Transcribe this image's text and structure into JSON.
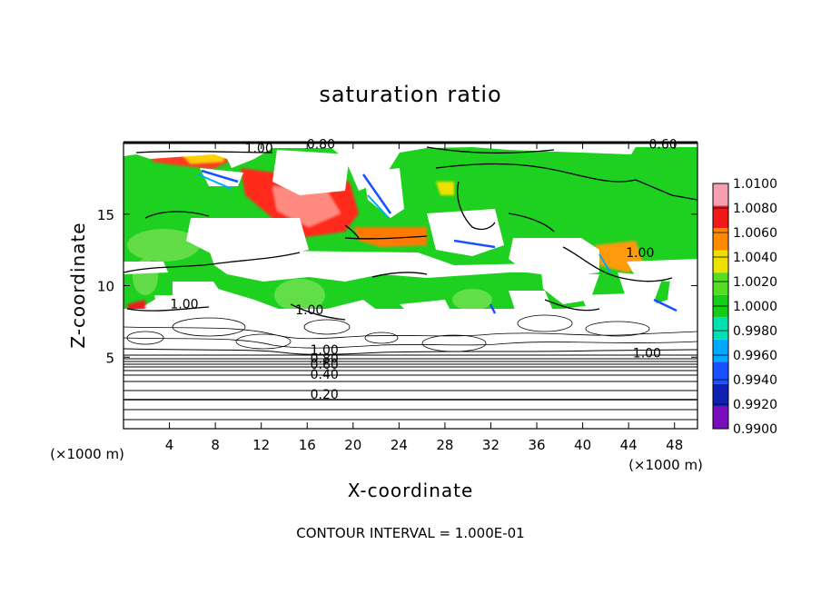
{
  "chart_data": {
    "type": "heatmap",
    "title": "saturation ratio",
    "xlabel": "X-coordinate",
    "ylabel": "Z-coordinate",
    "x_unit": "(×1000 m)",
    "z_unit": "(×1000 m)",
    "footer": "CONTOUR INTERVAL = 1.000E-01",
    "xlim": [
      0,
      50
    ],
    "ylim": [
      0,
      20
    ],
    "x_ticks": [
      4,
      8,
      12,
      16,
      20,
      24,
      28,
      32,
      36,
      40,
      44,
      48
    ],
    "y_ticks": [
      5,
      10,
      15
    ],
    "colorbar": {
      "levels": [
        0.99,
        0.992,
        0.994,
        0.996,
        0.998,
        1.0,
        1.002,
        1.004,
        1.006,
        1.008,
        1.01
      ],
      "labels": [
        "1.0100",
        "1.0080",
        "1.0060",
        "1.0040",
        "1.0020",
        "1.0000",
        "0.9980",
        "0.9960",
        "0.9940",
        "0.9920",
        "0.9900"
      ],
      "colors": [
        "#7a0dbb",
        "#1020b0",
        "#1a50ff",
        "#00a8ff",
        "#00e0b0",
        "#17cc17",
        "#55dd22",
        "#f0e000",
        "#ff8a00",
        "#ee1a1a",
        "#f5a0b0"
      ]
    },
    "contour_interval": 0.1,
    "contour_labels": [
      {
        "text": "0.20",
        "x": 17.5,
        "y": 2.1
      },
      {
        "text": "0.40",
        "x": 17.5,
        "y": 3.5
      },
      {
        "text": "0.60",
        "x": 17.5,
        "y": 4.2
      },
      {
        "text": "0.80",
        "x": 17.5,
        "y": 4.6
      },
      {
        "text": "1.00",
        "x": 17.5,
        "y": 5.2
      },
      {
        "text": "1.00",
        "x": 5.3,
        "y": 8.4
      },
      {
        "text": "1.00",
        "x": 16.2,
        "y": 8.0
      },
      {
        "text": "1.00",
        "x": 45.6,
        "y": 5.0
      },
      {
        "text": "1.00",
        "x": 45.0,
        "y": 12.0
      },
      {
        "text": "1.00",
        "x": 11.8,
        "y": 19.3
      },
      {
        "text": "0.80",
        "x": 17.2,
        "y": 19.6
      },
      {
        "text": "0.60",
        "x": 47.0,
        "y": 19.6
      }
    ]
  }
}
